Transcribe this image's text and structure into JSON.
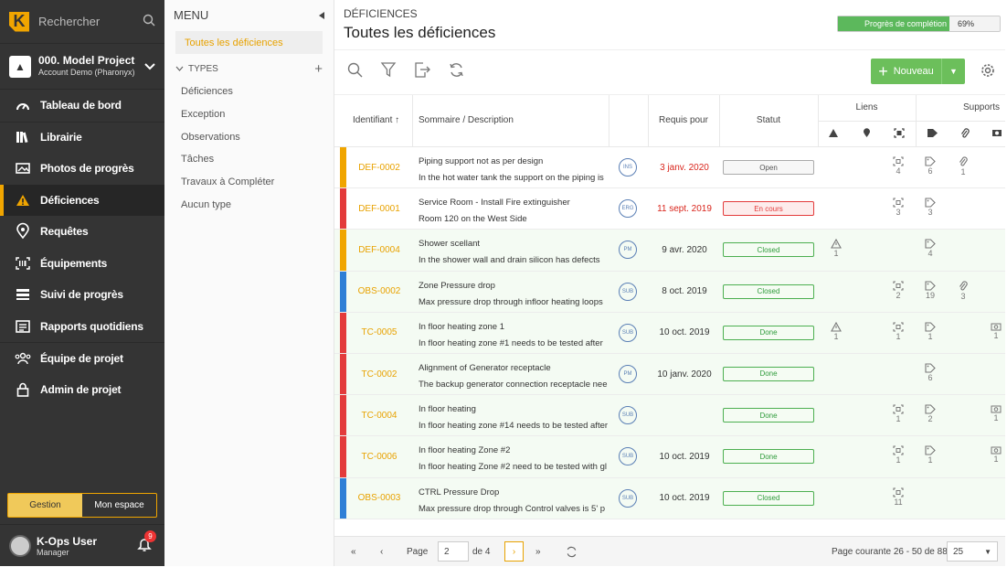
{
  "sidebar": {
    "search_label": "Rechercher",
    "project_name": "000. Model Project",
    "project_account": "Account Demo (Pharonyx)",
    "nav": [
      {
        "label": "Tableau de bord",
        "icon": "dashboard-icon"
      },
      {
        "label": "Librairie",
        "icon": "library-icon"
      },
      {
        "label": "Photos de progrès",
        "icon": "photos-icon"
      },
      {
        "label": "Déficiences",
        "icon": "warning-icon"
      },
      {
        "label": "Requêtes",
        "icon": "location-pin-icon"
      },
      {
        "label": "Équipements",
        "icon": "barcode-icon"
      },
      {
        "label": "Suivi de progrès",
        "icon": "progress-list-icon"
      },
      {
        "label": "Rapports quotidiens",
        "icon": "reports-icon"
      },
      {
        "label": "Équipe de projet",
        "icon": "team-icon"
      },
      {
        "label": "Admin de projet",
        "icon": "lock-icon"
      }
    ],
    "toggle": {
      "left": "Gestion",
      "right": "Mon espace"
    },
    "user_name": "K-Ops User",
    "user_role": "Manager",
    "notification_count": "9"
  },
  "menu": {
    "header": "MENU",
    "all_label": "Toutes les déficiences",
    "types_header": "TYPES",
    "types": [
      "Déficiences",
      "Exception",
      "Observations",
      "Tâches",
      "Travaux à Compléter",
      "Aucun type"
    ]
  },
  "main": {
    "breadcrumb": "DÉFICIENCES",
    "title": "Toutes les déficiences",
    "progress_label": "Progrès de complétion",
    "progress_value": "69%",
    "progress_fraction": 0.69,
    "new_button": "Nouveau",
    "columns": {
      "id": "Identifiant",
      "summary": "Sommaire / Description",
      "required": "Requis pour",
      "status": "Statut",
      "links": "Liens",
      "supports": "Supports"
    },
    "rows": [
      {
        "id": "DEF-0002",
        "summary": "Piping support not as per design",
        "desc": "In the hot water tank the support on the piping is",
        "tag": "INS",
        "date": "3 janv. 2020",
        "date_red": true,
        "status": "Open",
        "status_type": "open",
        "bar": "#f0a500",
        "def": "",
        "loc": "",
        "scan": "4",
        "label": "6",
        "clip": "1",
        "cam": ""
      },
      {
        "id": "DEF-0001",
        "summary": "Service Room - Install Fire extinguisher",
        "desc": "Room 120 on the West Side",
        "tag": "ERG",
        "date": "11 sept. 2019",
        "date_red": true,
        "status": "En cours",
        "status_type": "progress",
        "bar": "#e33b3b",
        "def": "",
        "loc": "",
        "scan": "3",
        "label": "3",
        "clip": "",
        "cam": ""
      },
      {
        "id": "DEF-0004",
        "summary": "Shower scellant",
        "desc": "In the shower wall and drain silicon has defects",
        "tag": "PM",
        "date": "9 avr. 2020",
        "date_red": false,
        "status": "Closed",
        "status_type": "closed",
        "bar": "#f0a500",
        "def": "1",
        "loc": "",
        "scan": "",
        "label": "4",
        "clip": "",
        "cam": ""
      },
      {
        "id": "OBS-0002",
        "summary": "Zone Pressure drop",
        "desc": "Max pressure drop through infloor heating loops",
        "tag": "SUB",
        "date": "8 oct. 2019",
        "date_red": false,
        "status": "Closed",
        "status_type": "closed",
        "bar": "#2f7fd6",
        "def": "",
        "loc": "",
        "scan": "2",
        "label": "19",
        "clip": "3",
        "cam": ""
      },
      {
        "id": "TC-0005",
        "summary": "In floor heating zone 1",
        "desc": "In floor heating zone #1 needs to be tested after",
        "tag": "SUB",
        "date": "10 oct. 2019",
        "date_red": false,
        "status": "Done",
        "status_type": "done",
        "bar": "#e33b3b",
        "def": "1",
        "loc": "",
        "scan": "1",
        "label": "1",
        "clip": "",
        "cam": "1"
      },
      {
        "id": "TC-0002",
        "summary": "Alignment of Generator receptacle",
        "desc": "The backup generator connection receptacle nee",
        "tag": "PM",
        "date": "10 janv. 2020",
        "date_red": false,
        "status": "Done",
        "status_type": "done",
        "bar": "#e33b3b",
        "def": "",
        "loc": "",
        "scan": "",
        "label": "6",
        "clip": "",
        "cam": ""
      },
      {
        "id": "TC-0004",
        "summary": "In floor heating",
        "desc": "In floor heating zone #14 needs to be tested after",
        "tag": "SUB",
        "date": "",
        "date_red": false,
        "status": "Done",
        "status_type": "done",
        "bar": "#e33b3b",
        "def": "",
        "loc": "",
        "scan": "1",
        "label": "2",
        "clip": "",
        "cam": "1"
      },
      {
        "id": "TC-0006",
        "summary": "In floor heating Zone #2",
        "desc": "In floor heating Zone #2 need to be tested with gl",
        "tag": "SUB",
        "date": "10 oct. 2019",
        "date_red": false,
        "status": "Done",
        "status_type": "done",
        "bar": "#e33b3b",
        "def": "",
        "loc": "",
        "scan": "1",
        "label": "1",
        "clip": "",
        "cam": "1"
      },
      {
        "id": "OBS-0003",
        "summary": "CTRL Pressure Drop",
        "desc": "Max pressure drop through Control valves is 5' p",
        "tag": "SUB",
        "date": "10 oct. 2019",
        "date_red": false,
        "status": "Closed",
        "status_type": "closed",
        "bar": "#2f7fd6",
        "def": "",
        "loc": "",
        "scan": "11",
        "label": "",
        "clip": "",
        "cam": ""
      }
    ]
  },
  "pager": {
    "page_label": "Page",
    "page_value": "2",
    "of_label": "de 4",
    "summary": "Page courante 26 - 50 de 88",
    "page_size": "25"
  },
  "colors": {
    "accent": "#f0a500",
    "green": "#6cbf5b",
    "sidebar": "#343434"
  }
}
